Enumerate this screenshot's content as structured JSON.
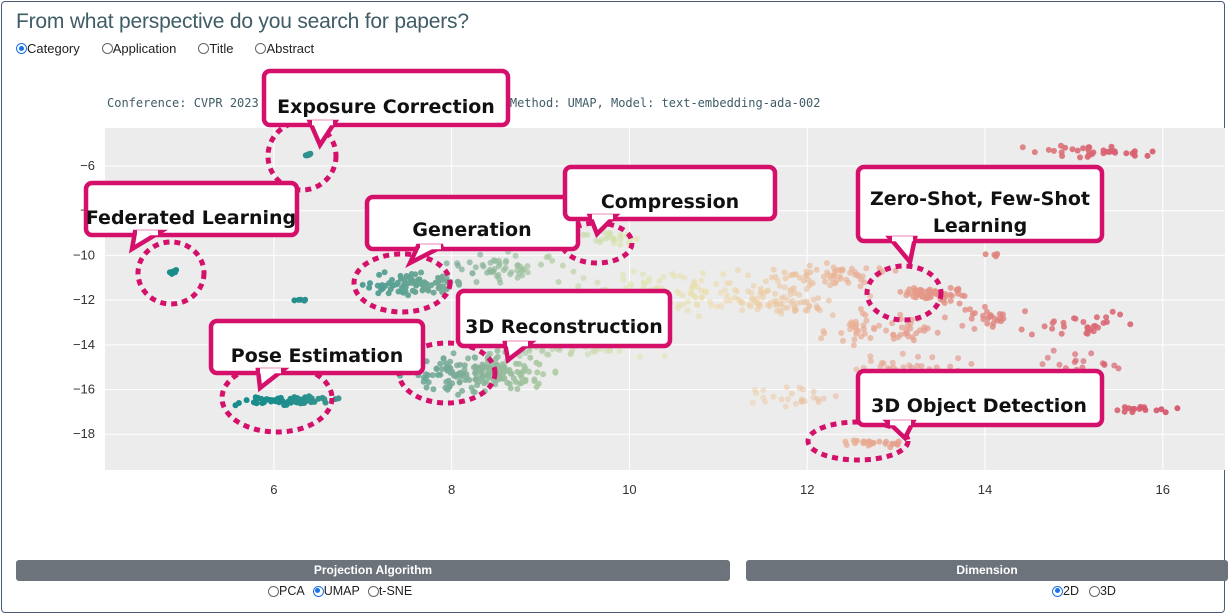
{
  "header": {
    "title": "From what perspective do you search for papers?"
  },
  "perspective": {
    "options": [
      "Category",
      "Application",
      "Title",
      "Abstract"
    ],
    "selected": "Category"
  },
  "plot": {
    "subtitle_visible": "Conference: CVPR 2023",
    "subtitle_tail": "ory, Method: UMAP, Model: text-embedding-ada-002",
    "x_ticks": [
      "6",
      "8",
      "10",
      "12",
      "14",
      "16"
    ],
    "y_ticks": [
      "−6",
      "−8",
      "−10",
      "−12",
      "−14",
      "−16",
      "−18"
    ],
    "x_range": [
      4.1,
      16.7
    ],
    "y_range": [
      -19.6,
      -4.3
    ],
    "callouts": [
      "Exposure Correction",
      "Federated Learning",
      "Generation",
      "Compression",
      "Zero-Shot, Few-Shot",
      "Learning",
      "Pose Estimation",
      "3D Reconstruction",
      "3D Object Detection"
    ],
    "callout_color": "#d4106a",
    "plot_bg": "#ececec"
  },
  "projection": {
    "label": "Projection Algorithm",
    "options": [
      "PCA",
      "UMAP",
      "t-SNE"
    ],
    "selected": "UMAP"
  },
  "dimension": {
    "label": "Dimension",
    "options": [
      "2D",
      "3D"
    ],
    "selected": "2D"
  }
}
